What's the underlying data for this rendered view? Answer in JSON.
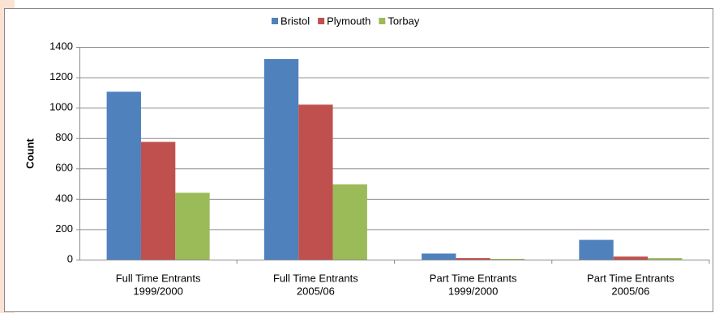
{
  "chart_data": {
    "type": "bar",
    "y_label": "Count",
    "categories": [
      [
        "Full Time Entrants",
        "1999/2000"
      ],
      [
        "Full Time Entrants",
        "2005/06"
      ],
      [
        "Part Time Entrants",
        "1999/2000"
      ],
      [
        "Part Time Entrants",
        "2005/06"
      ]
    ],
    "series": [
      {
        "name": "Bristol",
        "color": "#4f81bd",
        "values": [
          1105,
          1320,
          40,
          130
        ]
      },
      {
        "name": "Plymouth",
        "color": "#c0504d",
        "values": [
          775,
          1020,
          10,
          20
        ]
      },
      {
        "name": "Torbay",
        "color": "#9bbb59",
        "values": [
          440,
          495,
          5,
          10
        ]
      }
    ],
    "ylim": [
      0,
      1400
    ],
    "yticks": [
      0,
      200,
      400,
      600,
      800,
      1000,
      1200,
      1400
    ],
    "grid": true,
    "legend": "top"
  }
}
